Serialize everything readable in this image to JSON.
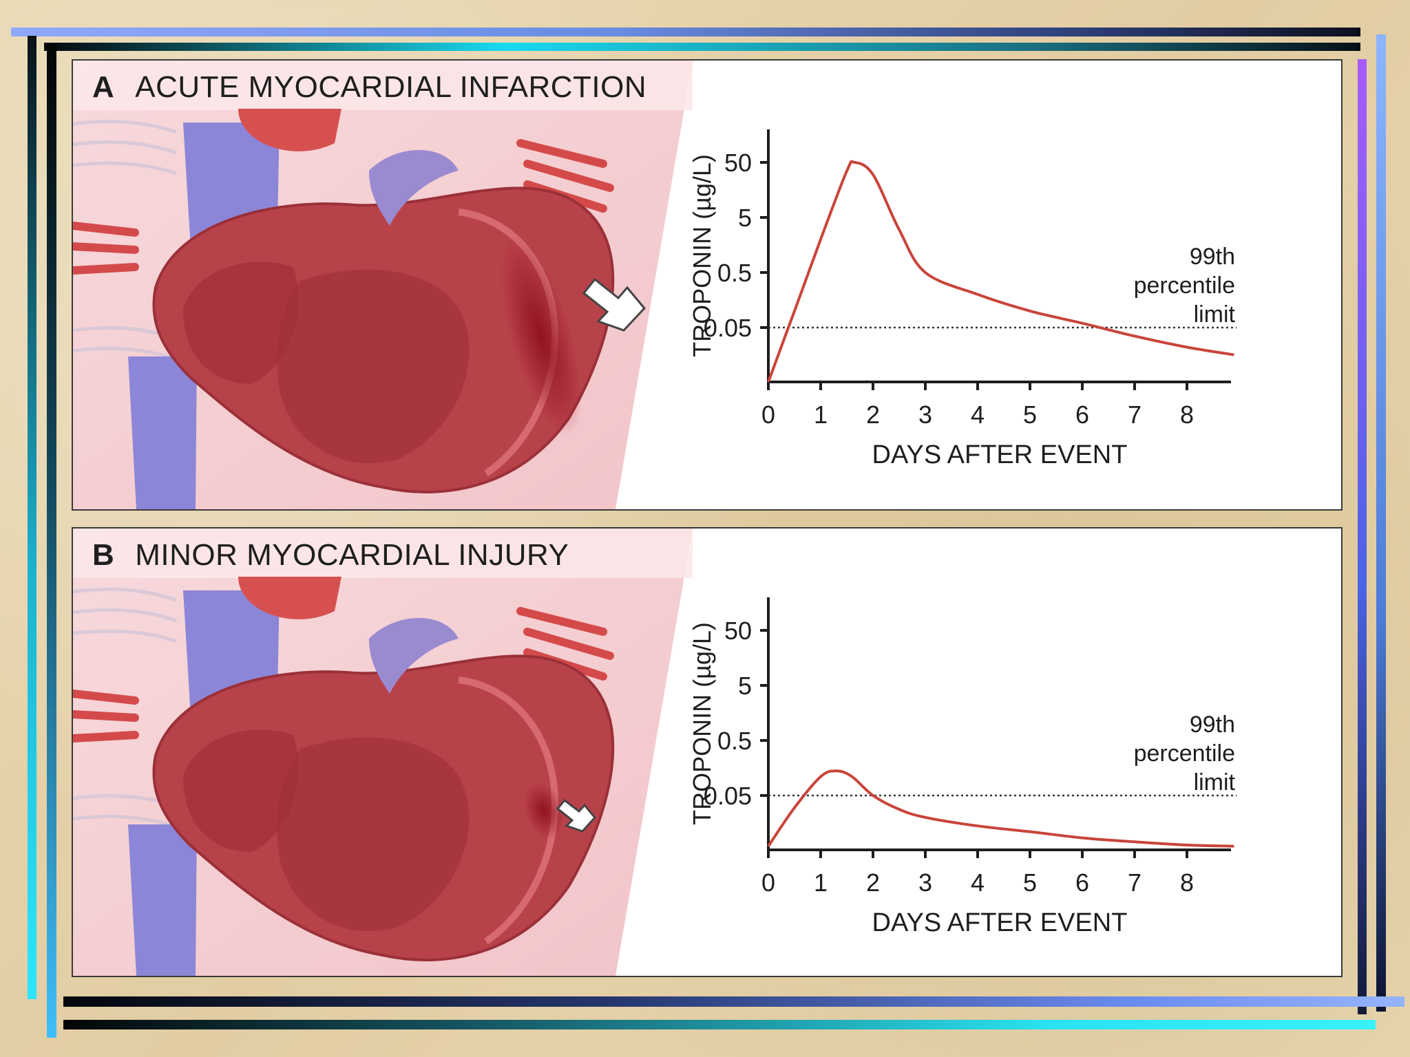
{
  "panels": [
    {
      "letter": "A",
      "title": "ACUTE MYOCARDIAL INFARCTION",
      "y_label": "TROPONIN (µg/L)",
      "y_ticks": [
        "50",
        "5",
        "0.5",
        "0.05"
      ],
      "x_label": "DAYS AFTER EVENT",
      "x_ticks": [
        "0",
        "1",
        "2",
        "3",
        "4",
        "5",
        "6",
        "7",
        "8"
      ],
      "threshold_label_lines": [
        "99th",
        "percentile",
        "limit"
      ],
      "curve": {
        "days": [
          0,
          0.5,
          1,
          1.5,
          1.65,
          2,
          2.5,
          3,
          4,
          5,
          6,
          7,
          8,
          8.9
        ],
        "troponin": [
          0.005,
          0.1,
          2,
          35,
          50,
          30,
          3,
          0.5,
          0.2,
          0.1,
          0.06,
          0.035,
          0.022,
          0.016
        ]
      },
      "arrow_size": "large",
      "colors": {
        "curve": "#c9443a",
        "threshold": "#333333"
      }
    },
    {
      "letter": "B",
      "title": "MINOR MYOCARDIAL INJURY",
      "y_label": "TROPONIN (µg/L)",
      "y_ticks": [
        "50",
        "5",
        "0.5",
        "0.05"
      ],
      "x_label": "DAYS AFTER EVENT",
      "x_ticks": [
        "0",
        "1",
        "2",
        "3",
        "4",
        "5",
        "6",
        "7",
        "8"
      ],
      "threshold_label_lines": [
        "99th",
        "percentile",
        "limit"
      ],
      "curve": {
        "days": [
          0,
          0.5,
          1,
          1.3,
          1.6,
          2,
          2.5,
          3,
          4,
          5,
          6,
          7,
          8,
          8.9
        ],
        "troponin": [
          0.006,
          0.03,
          0.11,
          0.14,
          0.11,
          0.05,
          0.028,
          0.02,
          0.014,
          0.011,
          0.0085,
          0.0072,
          0.0063,
          0.006
        ]
      },
      "arrow_size": "small",
      "colors": {
        "curve": "#c9443a",
        "threshold": "#333333"
      }
    }
  ],
  "threshold_value": 0.05
}
